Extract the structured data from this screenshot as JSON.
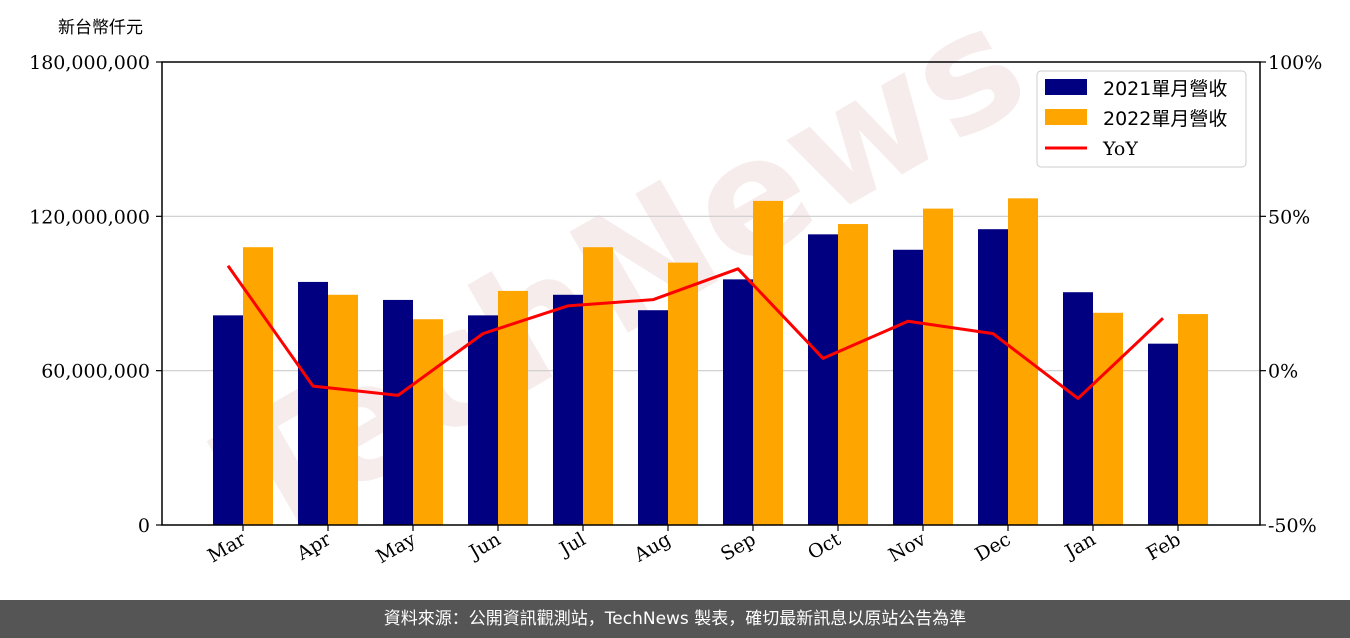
{
  "unit_label": "新台幣仟元",
  "footer_text": "資料來源：公開資訊觀測站，TechNews 製表，確切最新訊息以原站公告為準",
  "watermark": "TechNews",
  "colors": {
    "bar_2021": "#000080",
    "bar_2022": "#FFA500",
    "yoy_line": "#FF0000",
    "grid": "#CCCCCC",
    "footer_bg": "#555555"
  },
  "chart_data": {
    "type": "bar",
    "categories": [
      "Mar",
      "Apr",
      "May",
      "Jun",
      "Jul",
      "Aug",
      "Sep",
      "Oct",
      "Nov",
      "Dec",
      "Jan",
      "Feb"
    ],
    "series": [
      {
        "name": "2021單月營收",
        "type": "bar",
        "axis": "left",
        "color": "#000080",
        "values": [
          81500000,
          94500000,
          87500000,
          81500000,
          89500000,
          83500000,
          95500000,
          113000000,
          107000000,
          115000000,
          90500000,
          70500000
        ]
      },
      {
        "name": "2022單月營收",
        "type": "bar",
        "axis": "left",
        "color": "#FFA500",
        "values": [
          108000000,
          89500000,
          80000000,
          91000000,
          108000000,
          102000000,
          126000000,
          117000000,
          123000000,
          127000000,
          82500000,
          82000000
        ]
      },
      {
        "name": "YoY",
        "type": "line",
        "axis": "right",
        "color": "#FF0000",
        "values": [
          34,
          -5,
          -8,
          12,
          21,
          23,
          33,
          4,
          16,
          12,
          -9,
          17
        ]
      }
    ],
    "y_left": {
      "range": [
        0,
        180000000
      ],
      "ticks": [
        "0",
        "60,000,000",
        "120,000,000",
        "180,000,000"
      ],
      "tick_values": [
        0,
        60000000,
        120000000,
        180000000
      ]
    },
    "y_right": {
      "range": [
        -50,
        100
      ],
      "ticks": [
        "-50%",
        "0%",
        "50%",
        "100%"
      ],
      "tick_values": [
        -50,
        0,
        50,
        100
      ]
    },
    "grid": true,
    "legend_position": "top-right",
    "legend": [
      "2021單月營收",
      "2022單月營收",
      "YoY"
    ]
  }
}
